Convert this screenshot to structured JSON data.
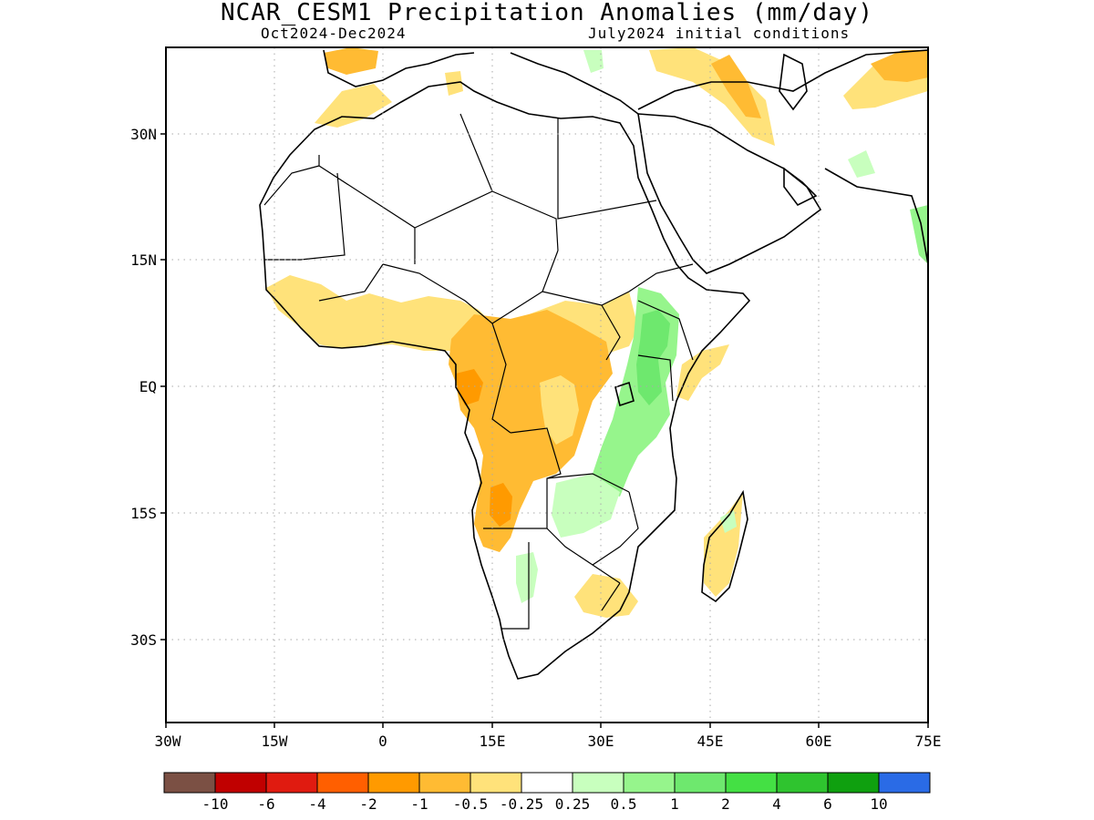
{
  "title": "NCAR_CESM1 Precipitation Anomalies (mm/day)",
  "subtitle_left": "Oct2024-Dec2024",
  "subtitle_right": "July2024 initial conditions",
  "map": {
    "lat_labels": [
      "30N",
      "15N",
      "EQ",
      "15S",
      "30S"
    ],
    "lon_labels": [
      "30W",
      "15W",
      "0",
      "15E",
      "30E",
      "45E",
      "60E",
      "75E"
    ],
    "lon_range": [
      -30,
      75
    ],
    "lat_range": [
      -46,
      41
    ],
    "grid": "dotted"
  },
  "colorbar": {
    "colors": [
      "#7b5044",
      "#c00000",
      "#e01b10",
      "#ff5f00",
      "#ff9a00",
      "#ffbb33",
      "#ffe27a",
      "#ffffff",
      "#c8ffbe",
      "#96f58c",
      "#6ee86e",
      "#44e044",
      "#2fc42f",
      "#0fa00f",
      "#2a6be6"
    ],
    "labels": [
      "-10",
      "-6",
      "-4",
      "-2",
      "-1",
      "-0.5",
      "-0.25",
      "0.25",
      "0.5",
      "1",
      "2",
      "4",
      "6",
      "10"
    ]
  },
  "colors": {
    "dry_light": "#ffe27a",
    "dry_mid": "#ffbb33",
    "dry_strong": "#ff9a00",
    "wet_light": "#c8ffbe",
    "wet_mid": "#96f58c",
    "wet_strong": "#6ee86e"
  }
}
